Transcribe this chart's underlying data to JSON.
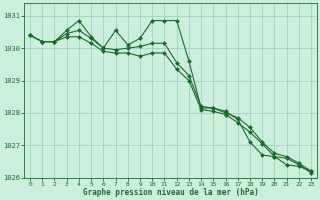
{
  "bg_color": "#cceedd",
  "grid_color": "#99ccbb",
  "line_color": "#1a6b2a",
  "marker_color": "#1a6b2a",
  "xlabel": "Graphe pression niveau de la mer (hPa)",
  "xlabel_color": "#1a6b2a",
  "tick_color": "#1a6b2a",
  "ylim": [
    1026.0,
    1031.4
  ],
  "xlim": [
    -0.5,
    23.5
  ],
  "yticks": [
    1026,
    1027,
    1028,
    1029,
    1030,
    1031
  ],
  "xticks": [
    0,
    1,
    2,
    3,
    4,
    5,
    6,
    7,
    8,
    9,
    10,
    11,
    12,
    13,
    14,
    15,
    16,
    17,
    18,
    19,
    20,
    21,
    22,
    23
  ],
  "s1_x": [
    0,
    1,
    2,
    3,
    4,
    5,
    6,
    7,
    8,
    9,
    10,
    11,
    12,
    13,
    14,
    15,
    16,
    17,
    18,
    19,
    20,
    21,
    22,
    23
  ],
  "s1_y": [
    1030.4,
    1030.2,
    1030.2,
    1030.55,
    1030.85,
    1030.35,
    1030.0,
    1030.55,
    1030.1,
    1030.3,
    1030.85,
    1030.85,
    1030.85,
    1029.6,
    1028.15,
    1028.15,
    1028.05,
    1027.8,
    1027.1,
    1026.7,
    1026.65,
    1026.4,
    1026.35,
    1026.2
  ],
  "s2_x": [
    0,
    1,
    2,
    3,
    4,
    5,
    6,
    7,
    8,
    9,
    10,
    11,
    12,
    13,
    14,
    15,
    16,
    17,
    18,
    19,
    20,
    21,
    22,
    23
  ],
  "s2_y": [
    1030.4,
    1030.2,
    1030.2,
    1030.45,
    1030.55,
    1030.3,
    1030.0,
    1029.95,
    1030.0,
    1030.05,
    1030.15,
    1030.15,
    1029.55,
    1029.15,
    1028.2,
    1028.15,
    1028.0,
    1027.85,
    1027.55,
    1027.1,
    1026.75,
    1026.65,
    1026.45,
    1026.2
  ],
  "s3_x": [
    0,
    1,
    2,
    3,
    4,
    5,
    6,
    7,
    8,
    9,
    10,
    11,
    12,
    13,
    14,
    15,
    16,
    17,
    18,
    19,
    20,
    21,
    22,
    23
  ],
  "s3_y": [
    1030.4,
    1030.2,
    1030.2,
    1030.35,
    1030.35,
    1030.15,
    1029.9,
    1029.85,
    1029.85,
    1029.75,
    1029.85,
    1029.85,
    1029.35,
    1029.0,
    1028.1,
    1028.05,
    1027.95,
    1027.7,
    1027.4,
    1027.05,
    1026.65,
    1026.6,
    1026.4,
    1026.15
  ]
}
